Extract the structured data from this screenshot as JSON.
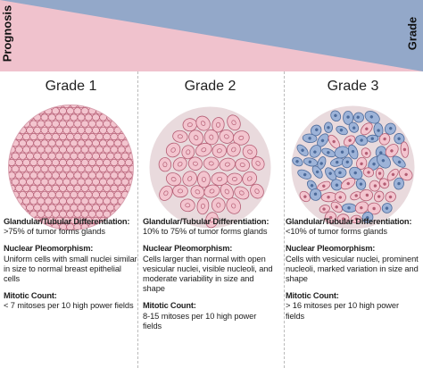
{
  "banner": {
    "left_label": "Prognosis",
    "right_label": "Grade",
    "colors": {
      "pink": "#f0c2cd",
      "blue": "#93a8c9"
    }
  },
  "grades": [
    {
      "title": "Grade 1",
      "glandular_heading": "Glandular/Tubular Differentiation:",
      "glandular_text": ">75% of tumor forms glands",
      "nuclear_heading": "Nuclear Pleomorphism:",
      "nuclear_text": "Uniform cells with small nuclei similar in size to normal breast epithelial cells",
      "mitotic_heading": "Mitotic Count:",
      "mitotic_text": "< 7 mitoses per 10 high power fields"
    },
    {
      "title": "Grade 2",
      "glandular_heading": "Glandular/Tubular Differentiation:",
      "glandular_text": "10% to 75% of tumor forms glands",
      "nuclear_heading": "Nuclear Pleomorphism:",
      "nuclear_text": "Cells larger than normal with open vesicular nuclei, visible nucleoli, and moderate variability in size and shape",
      "mitotic_heading": "Mitotic Count:",
      "mitotic_text": "8-15 mitoses per 10 high power fields"
    },
    {
      "title": "Grade 3",
      "glandular_heading": "Glandular/Tubular Differentiation:",
      "glandular_text": "<10% of tumor forms glands",
      "nuclear_heading": "Nuclear Pleomorphism:",
      "nuclear_text": "Cells with vesicular nuclei, prominent nucleoli, marked variation in size and shape",
      "mitotic_heading": "Mitotic Count:",
      "mitotic_text": "> 16 mitoses per 10 high power fields"
    }
  ],
  "colors": {
    "cell_pink": "#f3c5cf",
    "cell_outline": "#b45d74",
    "cell_blue": "#9db3d8",
    "blue_outline": "#4d6b9b",
    "background_disc": "#e9dadd"
  }
}
